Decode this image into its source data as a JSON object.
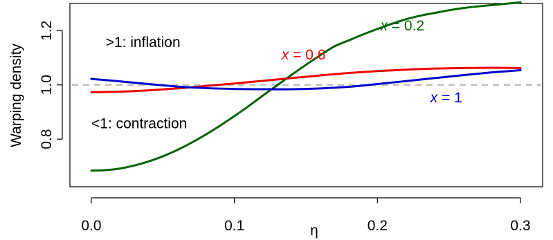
{
  "chart_data": {
    "type": "line",
    "xlabel": "η",
    "ylabel": "Warping density",
    "xlim": [
      0,
      0.3
    ],
    "ylim": [
      0.64,
      1.3
    ],
    "xticks": [
      0.0,
      0.1,
      0.2,
      0.3
    ],
    "xtick_labels": [
      "0.0",
      "0.1",
      "0.2",
      "0.3"
    ],
    "yticks": [
      0.8,
      1.0,
      1.2
    ],
    "ytick_labels": [
      "0.8",
      "1.0",
      "1.2"
    ],
    "grid": false,
    "reference_line": {
      "y": 1.0,
      "style": "dashed",
      "color": "#c0c0c0"
    },
    "annotations": [
      {
        "text": ">1: inflation",
        "x": 0.01,
        "y": 1.14
      },
      {
        "text": "<1: contraction",
        "x": 0.0,
        "y": 0.84
      }
    ],
    "series": [
      {
        "name": "x = 0.2",
        "label_var": "x",
        "label_rest": " = 0.2",
        "label_pos": {
          "x": 0.202,
          "y": 1.2
        },
        "color": "#006400",
        "x": [
          0.0,
          0.01,
          0.02,
          0.03,
          0.04,
          0.05,
          0.06,
          0.07,
          0.08,
          0.09,
          0.1,
          0.11,
          0.12,
          0.13,
          0.14,
          0.15,
          0.16,
          0.17,
          0.18,
          0.19,
          0.2,
          0.21,
          0.22,
          0.23,
          0.24,
          0.25,
          0.26,
          0.27,
          0.28,
          0.29,
          0.3
        ],
        "values": [
          0.684,
          0.686,
          0.692,
          0.703,
          0.718,
          0.737,
          0.76,
          0.787,
          0.817,
          0.85,
          0.885,
          0.922,
          0.961,
          0.999,
          1.037,
          1.074,
          1.109,
          1.142,
          1.164,
          1.186,
          1.206,
          1.225,
          1.242,
          1.255,
          1.265,
          1.275,
          1.283,
          1.289,
          1.294,
          1.299,
          1.304
        ]
      },
      {
        "name": "x = 0.6",
        "label_var": "x",
        "label_rest": " = 0.6",
        "label_pos": {
          "x": 0.133,
          "y": 1.093
        },
        "color": "#ee0000",
        "x": [
          0.0,
          0.02,
          0.04,
          0.06,
          0.08,
          0.1,
          0.12,
          0.14,
          0.16,
          0.18,
          0.2,
          0.22,
          0.24,
          0.26,
          0.28,
          0.3
        ],
        "values": [
          0.973,
          0.975,
          0.98,
          0.987,
          0.996,
          1.005,
          1.015,
          1.025,
          1.035,
          1.044,
          1.051,
          1.056,
          1.06,
          1.062,
          1.063,
          1.062
        ]
      },
      {
        "name": "x = 1",
        "label_var": "x",
        "label_rest": " = 1",
        "label_pos": {
          "x": 0.237,
          "y": 0.936
        },
        "color": "#0000cc",
        "x": [
          0.0,
          0.02,
          0.04,
          0.06,
          0.08,
          0.1,
          0.12,
          0.14,
          0.16,
          0.18,
          0.2,
          0.22,
          0.24,
          0.26,
          0.28,
          0.3
        ],
        "values": [
          1.022,
          1.013,
          1.003,
          0.994,
          0.988,
          0.985,
          0.984,
          0.984,
          0.987,
          0.993,
          1.003,
          1.014,
          1.025,
          1.036,
          1.046,
          1.054
        ]
      }
    ]
  }
}
